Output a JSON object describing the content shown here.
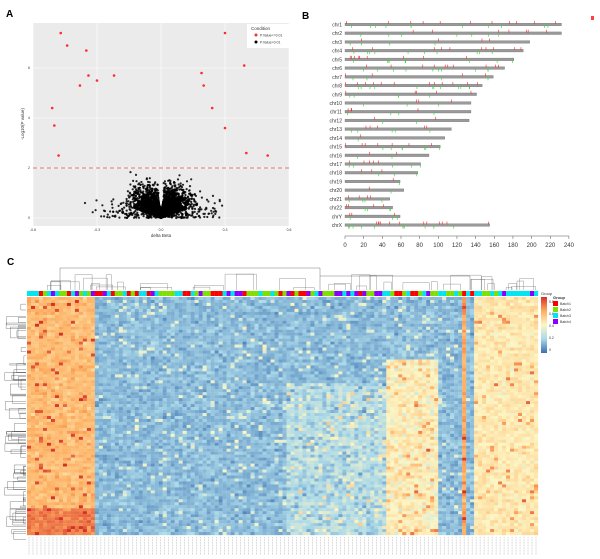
{
  "chart_data": [
    {
      "panel": "A",
      "type": "scatter",
      "xlabel": "delta Beta",
      "ylabel": "-Log10(P value)",
      "xlim": [
        -0.6,
        0.6
      ],
      "ylim": [
        0,
        7.6
      ],
      "xticks": [
        "-0.6",
        "-0.3",
        "0.0",
        "0.3",
        "0.6"
      ],
      "yticks": [
        "0",
        "2",
        "4",
        "6"
      ],
      "grid": true,
      "threshold_line": 2,
      "legend": {
        "title": "Condition",
        "position": "top-right",
        "entries": [
          {
            "label": "P.Value<=0.01",
            "color": "#ff2a2a"
          },
          {
            "label": "P.Value>0.01",
            "color": "#000000"
          }
        ]
      },
      "highlight_points": [
        {
          "x": -0.47,
          "y": 7.4
        },
        {
          "x": -0.44,
          "y": 6.9
        },
        {
          "x": -0.35,
          "y": 6.7
        },
        {
          "x": -0.34,
          "y": 5.7
        },
        {
          "x": -0.38,
          "y": 5.3
        },
        {
          "x": -0.3,
          "y": 5.5
        },
        {
          "x": -0.22,
          "y": 5.7
        },
        {
          "x": -0.51,
          "y": 4.4
        },
        {
          "x": -0.5,
          "y": 3.7
        },
        {
          "x": -0.48,
          "y": 2.5
        },
        {
          "x": 0.3,
          "y": 7.4
        },
        {
          "x": 0.39,
          "y": 6.1
        },
        {
          "x": 0.19,
          "y": 5.8
        },
        {
          "x": 0.2,
          "y": 5.3
        },
        {
          "x": 0.3,
          "y": 3.6
        },
        {
          "x": 0.4,
          "y": 2.6
        },
        {
          "x": 0.5,
          "y": 2.5
        },
        {
          "x": 0.24,
          "y": 4.4
        }
      ]
    },
    {
      "panel": "B",
      "type": "bar",
      "orientation": "horizontal",
      "categories": [
        "chr1",
        "chr2",
        "chr3",
        "chr4",
        "chr5",
        "chr6",
        "chr7",
        "chr8",
        "chr9",
        "chr10",
        "chr11",
        "chr12",
        "chr13",
        "chr14",
        "chr15",
        "chr16",
        "chr17",
        "chr18",
        "chr19",
        "chr20",
        "chr21",
        "chr22",
        "chrY",
        "chrX"
      ],
      "values": [
        232,
        232,
        198,
        191,
        181,
        171,
        159,
        147,
        141,
        135,
        135,
        133,
        114,
        107,
        102,
        90,
        81,
        78,
        59,
        63,
        48,
        51,
        59,
        155
      ],
      "xlim": [
        0,
        240
      ],
      "xticks": [
        "0",
        "20",
        "40",
        "60",
        "80",
        "100",
        "120",
        "140",
        "160",
        "180",
        "200",
        "220",
        "240"
      ],
      "marker_colors": {
        "hyper": "#ff2020",
        "hypo": "#22dd22"
      }
    },
    {
      "panel": "C",
      "type": "heatmap",
      "colorbar": {
        "ticks": [
          "0.8",
          "0.6",
          "0.4",
          "0.2",
          "0"
        ],
        "colors": [
          "#d73027",
          "#fdae61",
          "#fdf6c3",
          "#abd9e9",
          "#3a6fb0"
        ]
      },
      "legend": {
        "title": "Group",
        "entries": [
          {
            "label": "Batch1",
            "color": "#ff0000"
          },
          {
            "label": "Batch2",
            "color": "#7fe000"
          },
          {
            "label": "Batch3",
            "color": "#00e5f0"
          },
          {
            "label": "Batch4",
            "color": "#8a00ff"
          }
        ]
      },
      "colorbar_title": "Group"
    }
  ],
  "panel_labels": [
    "A",
    "B",
    "C"
  ]
}
